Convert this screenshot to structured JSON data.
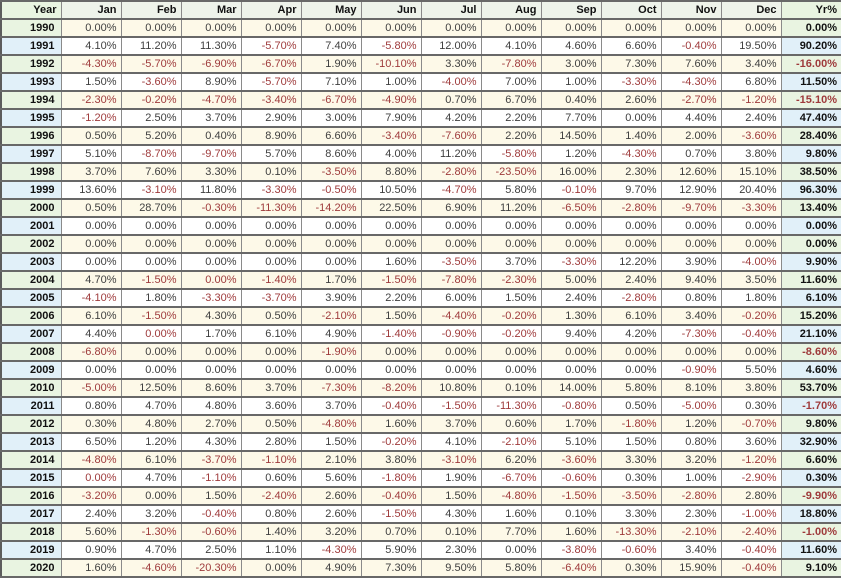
{
  "chart_data": {
    "type": "table",
    "columns": [
      "Year",
      "Jan",
      "Feb",
      "Mar",
      "Apr",
      "May",
      "Jun",
      "Jul",
      "Aug",
      "Sep",
      "Oct",
      "Nov",
      "Dec",
      "Yr%"
    ],
    "rows": [
      {
        "year": "1990",
        "months": [
          "0.00%",
          "0.00%",
          "0.00%",
          "0.00%",
          "0.00%",
          "0.00%",
          "0.00%",
          "0.00%",
          "0.00%",
          "0.00%",
          "0.00%",
          "0.00%"
        ],
        "yr": "0.00%"
      },
      {
        "year": "1991",
        "months": [
          "4.10%",
          "11.20%",
          "11.30%",
          "-5.70%",
          "7.40%",
          "-5.80%",
          "12.00%",
          "4.10%",
          "4.60%",
          "6.60%",
          "-0.40%",
          "19.50%"
        ],
        "yr": "90.20%"
      },
      {
        "year": "1992",
        "months": [
          "-4.30%",
          "-5.70%",
          "-6.90%",
          "-6.70%",
          "1.90%",
          "-10.10%",
          "3.30%",
          "-7.80%",
          "3.00%",
          "7.30%",
          "7.60%",
          "3.40%"
        ],
        "yr": "-16.00%"
      },
      {
        "year": "1993",
        "months": [
          "1.50%",
          "-3.60%",
          "8.90%",
          "-5.70%",
          "7.10%",
          "1.00%",
          "-4.00%",
          "7.00%",
          "1.00%",
          "-3.30%",
          "-4.30%",
          "6.80%"
        ],
        "yr": "11.50%"
      },
      {
        "year": "1994",
        "months": [
          "-2.30%",
          "-0.20%",
          "-4.70%",
          "-3.40%",
          "-6.70%",
          "-4.90%",
          "0.70%",
          "6.70%",
          "0.40%",
          "2.60%",
          "-2.70%",
          "-1.20%"
        ],
        "yr": "-15.10%"
      },
      {
        "year": "1995",
        "months": [
          "-1.20%",
          "2.50%",
          "3.70%",
          "2.90%",
          "3.00%",
          "7.90%",
          "4.20%",
          "2.20%",
          "7.70%",
          "0.00%",
          "4.40%",
          "2.40%"
        ],
        "yr": "47.40%"
      },
      {
        "year": "1996",
        "months": [
          "0.50%",
          "5.20%",
          "0.40%",
          "8.90%",
          "6.60%",
          "-3.40%",
          "-7.60%",
          "2.20%",
          "14.50%",
          "1.40%",
          "2.00%",
          "-3.60%"
        ],
        "yr": "28.40%"
      },
      {
        "year": "1997",
        "months": [
          "5.10%",
          "-8.70%",
          "-9.70%",
          "5.70%",
          "8.60%",
          "4.00%",
          "11.20%",
          "-5.80%",
          "1.20%",
          "-4.30%",
          "0.70%",
          "3.80%"
        ],
        "yr": "9.80%"
      },
      {
        "year": "1998",
        "months": [
          "3.70%",
          "7.60%",
          "3.30%",
          "0.10%",
          "-3.50%",
          "8.80%",
          "-2.80%",
          "-23.50%",
          "16.00%",
          "2.30%",
          "12.60%",
          "15.10%"
        ],
        "yr": "38.50%"
      },
      {
        "year": "1999",
        "months": [
          "13.60%",
          "-3.10%",
          "11.80%",
          "-3.30%",
          "-0.50%",
          "10.50%",
          "-4.70%",
          "5.80%",
          "-0.10%",
          "9.70%",
          "12.90%",
          "20.40%"
        ],
        "yr": "96.30%"
      },
      {
        "year": "2000",
        "months": [
          "0.50%",
          "28.70%",
          "-0.30%",
          "-11.30%",
          "-14.20%",
          "22.50%",
          "6.90%",
          "11.20%",
          "-6.50%",
          "-2.80%",
          "-9.70%",
          "-3.30%"
        ],
        "yr": "13.40%"
      },
      {
        "year": "2001",
        "months": [
          "0.00%",
          "0.00%",
          "0.00%",
          "0.00%",
          "0.00%",
          "0.00%",
          "0.00%",
          "0.00%",
          "0.00%",
          "0.00%",
          "0.00%",
          "0.00%"
        ],
        "yr": "0.00%"
      },
      {
        "year": "2002",
        "months": [
          "0.00%",
          "0.00%",
          "0.00%",
          "0.00%",
          "0.00%",
          "0.00%",
          "0.00%",
          "0.00%",
          "0.00%",
          "0.00%",
          "0.00%",
          "0.00%"
        ],
        "yr": "0.00%"
      },
      {
        "year": "2003",
        "months": [
          "0.00%",
          "0.00%",
          "0.00%",
          "0.00%",
          "0.00%",
          "1.60%",
          "-3.50%",
          "3.70%",
          "-3.30%",
          "12.20%",
          "3.90%",
          "-4.00%"
        ],
        "yr": "9.90%"
      },
      {
        "year": "2004",
        "months": [
          "4.70%",
          "-1.50%",
          "0.00%",
          "-1.40%",
          "1.70%",
          "-1.50%",
          "-7.80%",
          "-2.30%",
          "5.00%",
          "2.40%",
          "9.40%",
          "3.50%"
        ],
        "yr": "11.60%"
      },
      {
        "year": "2005",
        "months": [
          "-4.10%",
          "1.80%",
          "-3.30%",
          "-3.70%",
          "3.90%",
          "2.20%",
          "6.00%",
          "1.50%",
          "2.40%",
          "-2.80%",
          "0.80%",
          "1.80%"
        ],
        "yr": "6.10%"
      },
      {
        "year": "2006",
        "months": [
          "6.10%",
          "-1.50%",
          "4.30%",
          "0.50%",
          "-2.10%",
          "1.50%",
          "-4.40%",
          "-0.20%",
          "1.30%",
          "6.10%",
          "3.40%",
          "-0.20%"
        ],
        "yr": "15.20%"
      },
      {
        "year": "2007",
        "months": [
          "4.40%",
          "0.00%",
          "1.70%",
          "6.10%",
          "4.90%",
          "-1.40%",
          "-0.90%",
          "-0.20%",
          "9.40%",
          "4.20%",
          "-7.30%",
          "-0.40%"
        ],
        "yr": "21.10%"
      },
      {
        "year": "2008",
        "months": [
          "-6.80%",
          "0.00%",
          "0.00%",
          "0.00%",
          "-1.90%",
          "0.00%",
          "0.00%",
          "0.00%",
          "0.00%",
          "0.00%",
          "0.00%",
          "0.00%"
        ],
        "yr": "-8.60%"
      },
      {
        "year": "2009",
        "months": [
          "0.00%",
          "0.00%",
          "0.00%",
          "0.00%",
          "0.00%",
          "0.00%",
          "0.00%",
          "0.00%",
          "0.00%",
          "0.00%",
          "-0.90%",
          "5.50%"
        ],
        "yr": "4.60%"
      },
      {
        "year": "2010",
        "months": [
          "-5.00%",
          "12.50%",
          "8.60%",
          "3.70%",
          "-7.30%",
          "-8.20%",
          "10.80%",
          "0.10%",
          "14.00%",
          "5.80%",
          "8.10%",
          "3.80%"
        ],
        "yr": "53.70%"
      },
      {
        "year": "2011",
        "months": [
          "0.80%",
          "4.70%",
          "4.80%",
          "3.60%",
          "3.70%",
          "-0.40%",
          "-1.50%",
          "-11.30%",
          "-0.80%",
          "0.50%",
          "-5.00%",
          "0.30%"
        ],
        "yr": "-1.70%"
      },
      {
        "year": "2012",
        "months": [
          "0.30%",
          "4.80%",
          "2.70%",
          "0.50%",
          "-4.80%",
          "1.60%",
          "3.70%",
          "0.60%",
          "1.70%",
          "-1.80%",
          "1.20%",
          "-0.70%"
        ],
        "yr": "9.80%"
      },
      {
        "year": "2013",
        "months": [
          "6.50%",
          "1.20%",
          "4.30%",
          "2.80%",
          "1.50%",
          "-0.20%",
          "4.10%",
          "-2.10%",
          "5.10%",
          "1.50%",
          "0.80%",
          "3.60%"
        ],
        "yr": "32.90%"
      },
      {
        "year": "2014",
        "months": [
          "-4.80%",
          "6.10%",
          "-3.70%",
          "-1.10%",
          "2.10%",
          "3.80%",
          "-3.10%",
          "6.20%",
          "-3.60%",
          "3.30%",
          "3.20%",
          "-1.20%"
        ],
        "yr": "6.60%"
      },
      {
        "year": "2015",
        "months": [
          "0.00%",
          "4.70%",
          "-1.10%",
          "0.60%",
          "5.60%",
          "-1.80%",
          "1.90%",
          "-6.70%",
          "-0.60%",
          "0.30%",
          "1.00%",
          "-2.90%"
        ],
        "yr": "0.30%"
      },
      {
        "year": "2016",
        "months": [
          "-3.20%",
          "0.00%",
          "1.50%",
          "-2.40%",
          "2.60%",
          "-0.40%",
          "1.50%",
          "-4.80%",
          "-1.50%",
          "-3.50%",
          "-2.80%",
          "2.80%"
        ],
        "yr": "-9.90%"
      },
      {
        "year": "2017",
        "months": [
          "2.40%",
          "3.20%",
          "-0.40%",
          "0.80%",
          "2.60%",
          "-1.50%",
          "4.30%",
          "1.60%",
          "0.10%",
          "3.30%",
          "2.30%",
          "-1.00%"
        ],
        "yr": "18.80%"
      },
      {
        "year": "2018",
        "months": [
          "5.60%",
          "-1.30%",
          "-0.60%",
          "1.40%",
          "3.20%",
          "0.70%",
          "0.10%",
          "7.70%",
          "1.60%",
          "-13.30%",
          "-2.10%",
          "-2.40%"
        ],
        "yr": "-1.00%"
      },
      {
        "year": "2019",
        "months": [
          "0.90%",
          "4.70%",
          "2.50%",
          "1.10%",
          "-4.30%",
          "5.90%",
          "2.30%",
          "0.00%",
          "-3.80%",
          "-0.60%",
          "3.40%",
          "-0.40%"
        ],
        "yr": "11.60%"
      },
      {
        "year": "2020",
        "months": [
          "1.60%",
          "-4.60%",
          "-20.30%",
          "0.00%",
          "4.90%",
          "7.30%",
          "9.50%",
          "5.80%",
          "-6.40%",
          "0.30%",
          "15.90%",
          "-0.40%"
        ],
        "yr": "9.10%"
      }
    ],
    "red_zero_cells": [
      [
        "2004",
        "Mar"
      ],
      [
        "2007",
        "Feb"
      ],
      [
        "2015",
        "Jan"
      ]
    ],
    "layout_hints": {
      "grid": true,
      "value_alignment": "right",
      "striped_rows": true
    }
  },
  "colors": {
    "negative_text": "#9e3a3b",
    "positive_text": "#3f3f3f",
    "row_cream": "#fdf9e8",
    "row_white": "#ffffff",
    "year_col_green": "#e9f4e1",
    "year_col_blue": "#e1f0f9",
    "header_bg": "#eef3ea",
    "grid_horizontal": "#686868",
    "grid_vertical": "#8a8a8a"
  }
}
